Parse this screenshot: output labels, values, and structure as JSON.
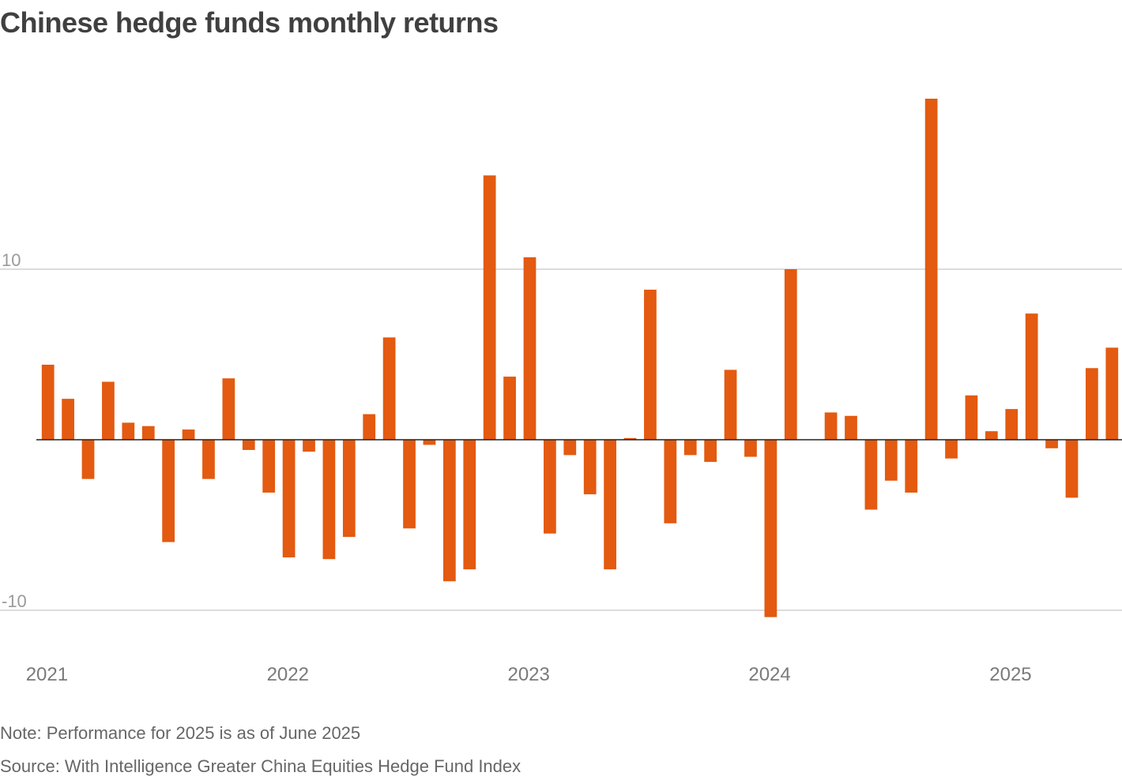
{
  "chart_data": {
    "type": "bar",
    "title": "Chinese hedge funds monthly returns",
    "xlabel": "",
    "ylabel": "",
    "ylim": [
      -12.2,
      20.2
    ],
    "yticks": [
      10,
      -10
    ],
    "ytick_labels": [
      "10",
      "-10"
    ],
    "xtick_labels": [
      "2021",
      "2022",
      "2023",
      "2024",
      "2025"
    ],
    "xtick_start_index": [
      0,
      12,
      24,
      36,
      48
    ],
    "bar_color": "#e35a10",
    "categories": [
      "2021-01",
      "2021-02",
      "2021-03",
      "2021-04",
      "2021-05",
      "2021-06",
      "2021-07",
      "2021-08",
      "2021-09",
      "2021-10",
      "2021-11",
      "2021-12",
      "2022-01",
      "2022-02",
      "2022-03",
      "2022-04",
      "2022-05",
      "2022-06",
      "2022-07",
      "2022-08",
      "2022-09",
      "2022-10",
      "2022-11",
      "2022-12",
      "2023-01",
      "2023-02",
      "2023-03",
      "2023-04",
      "2023-05",
      "2023-06",
      "2023-07",
      "2023-08",
      "2023-09",
      "2023-10",
      "2023-11",
      "2023-12",
      "2024-01",
      "2024-02",
      "2024-03",
      "2024-04",
      "2024-05",
      "2024-06",
      "2024-07",
      "2024-08",
      "2024-09",
      "2024-10",
      "2024-11",
      "2024-12",
      "2025-01",
      "2025-02",
      "2025-03",
      "2025-04",
      "2025-05",
      "2025-06"
    ],
    "values": [
      4.4,
      2.4,
      -2.3,
      3.4,
      1.0,
      0.8,
      -6.0,
      0.6,
      -2.3,
      3.6,
      -0.6,
      -3.1,
      -6.9,
      -0.7,
      -7.0,
      -5.7,
      1.5,
      6.0,
      -5.2,
      -0.3,
      -8.3,
      -7.6,
      15.5,
      3.7,
      10.7,
      -5.5,
      -0.9,
      -3.2,
      -7.6,
      0.1,
      8.8,
      -4.9,
      -0.9,
      -1.3,
      4.1,
      -1.0,
      -10.4,
      10.0,
      0.0,
      1.6,
      1.4,
      -4.1,
      -2.4,
      -3.1,
      20.0,
      -1.1,
      2.6,
      0.5,
      1.8,
      7.4,
      -0.5,
      -3.4,
      4.2,
      5.4
    ]
  },
  "footer": {
    "note": "Note: Performance for 2025 is as of June 2025",
    "source": "Source: With Intelligence Greater China Equities Hedge Fund Index"
  }
}
